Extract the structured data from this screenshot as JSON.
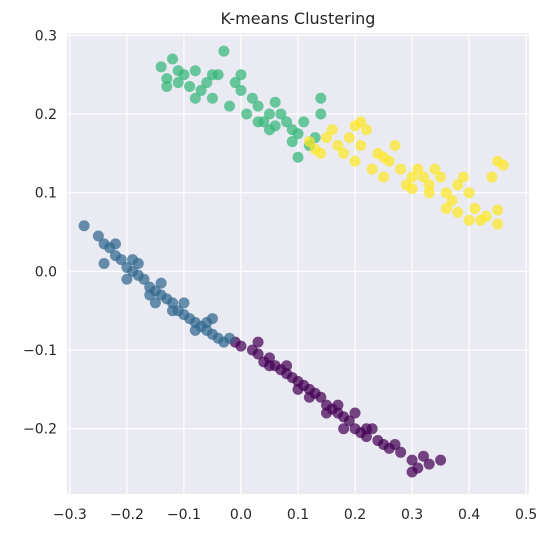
{
  "chart_data": {
    "type": "scatter",
    "title": "K-means Clustering",
    "xlabel": "",
    "ylabel": "",
    "xlim": [
      -0.305,
      0.505
    ],
    "ylim": [
      -0.283,
      0.303
    ],
    "xticks": [
      -0.3,
      -0.2,
      -0.1,
      0.0,
      0.1,
      0.2,
      0.3,
      0.4,
      0.5
    ],
    "xtick_labels": [
      "−0.3",
      "−0.2",
      "−0.1",
      "0.0",
      "0.1",
      "0.2",
      "0.3",
      "0.4",
      "0.5"
    ],
    "yticks": [
      -0.2,
      -0.1,
      0.0,
      0.1,
      0.2,
      0.3
    ],
    "ytick_labels": [
      "−0.2",
      "−0.1",
      "0.0",
      "0.1",
      "0.2",
      "0.3"
    ],
    "grid": true,
    "legend": "none",
    "background": "#eaeaf2",
    "grid_color": "#ffffff",
    "series": [
      {
        "color": "#440154",
        "points": [
          [
            -0.01,
            -0.09
          ],
          [
            0.0,
            -0.095
          ],
          [
            0.02,
            -0.1
          ],
          [
            0.03,
            -0.105
          ],
          [
            0.05,
            -0.11
          ],
          [
            0.06,
            -0.12
          ],
          [
            0.07,
            -0.125
          ],
          [
            0.08,
            -0.13
          ],
          [
            0.09,
            -0.135
          ],
          [
            0.1,
            -0.14
          ],
          [
            0.11,
            -0.145
          ],
          [
            0.12,
            -0.15
          ],
          [
            0.13,
            -0.155
          ],
          [
            0.14,
            -0.16
          ],
          [
            0.15,
            -0.17
          ],
          [
            0.16,
            -0.175
          ],
          [
            0.17,
            -0.18
          ],
          [
            0.18,
            -0.185
          ],
          [
            0.19,
            -0.19
          ],
          [
            0.2,
            -0.2
          ],
          [
            0.21,
            -0.205
          ],
          [
            0.22,
            -0.21
          ],
          [
            0.24,
            -0.215
          ],
          [
            0.26,
            -0.225
          ],
          [
            0.28,
            -0.23
          ],
          [
            0.3,
            -0.24
          ],
          [
            0.31,
            -0.25
          ],
          [
            0.32,
            -0.235
          ],
          [
            0.35,
            -0.24
          ],
          [
            0.3,
            -0.255
          ],
          [
            0.25,
            -0.22
          ],
          [
            0.22,
            -0.2
          ],
          [
            0.18,
            -0.2
          ],
          [
            0.15,
            -0.18
          ],
          [
            0.1,
            -0.15
          ],
          [
            0.05,
            -0.12
          ],
          [
            0.03,
            -0.09
          ],
          [
            0.08,
            -0.12
          ],
          [
            0.12,
            -0.16
          ],
          [
            0.17,
            -0.17
          ],
          [
            0.2,
            -0.18
          ],
          [
            0.23,
            -0.2
          ],
          [
            0.27,
            -0.22
          ],
          [
            0.33,
            -0.245
          ],
          [
            0.04,
            -0.115
          ]
        ]
      },
      {
        "color": "#31688e",
        "points": [
          [
            -0.275,
            0.058
          ],
          [
            -0.25,
            0.045
          ],
          [
            -0.24,
            0.035
          ],
          [
            -0.23,
            0.03
          ],
          [
            -0.22,
            0.02
          ],
          [
            -0.21,
            0.015
          ],
          [
            -0.2,
            0.005
          ],
          [
            -0.19,
            0.0
          ],
          [
            -0.18,
            -0.005
          ],
          [
            -0.17,
            -0.01
          ],
          [
            -0.16,
            -0.02
          ],
          [
            -0.15,
            -0.025
          ],
          [
            -0.14,
            -0.03
          ],
          [
            -0.13,
            -0.035
          ],
          [
            -0.12,
            -0.04
          ],
          [
            -0.11,
            -0.05
          ],
          [
            -0.1,
            -0.055
          ],
          [
            -0.09,
            -0.06
          ],
          [
            -0.08,
            -0.065
          ],
          [
            -0.07,
            -0.07
          ],
          [
            -0.06,
            -0.075
          ],
          [
            -0.05,
            -0.08
          ],
          [
            -0.04,
            -0.085
          ],
          [
            -0.03,
            -0.09
          ],
          [
            -0.02,
            -0.085
          ],
          [
            -0.24,
            0.01
          ],
          [
            -0.2,
            -0.01
          ],
          [
            -0.16,
            -0.03
          ],
          [
            -0.12,
            -0.05
          ],
          [
            -0.08,
            -0.075
          ],
          [
            -0.05,
            -0.06
          ],
          [
            -0.22,
            0.035
          ],
          [
            -0.18,
            0.01
          ],
          [
            -0.14,
            -0.015
          ],
          [
            -0.1,
            -0.04
          ],
          [
            -0.06,
            -0.065
          ],
          [
            -0.15,
            -0.04
          ],
          [
            -0.19,
            0.015
          ]
        ]
      },
      {
        "color": "#35b779",
        "points": [
          [
            -0.14,
            0.26
          ],
          [
            -0.13,
            0.245
          ],
          [
            -0.12,
            0.27
          ],
          [
            -0.11,
            0.24
          ],
          [
            -0.1,
            0.25
          ],
          [
            -0.09,
            0.235
          ],
          [
            -0.08,
            0.255
          ],
          [
            -0.07,
            0.23
          ],
          [
            -0.06,
            0.24
          ],
          [
            -0.05,
            0.22
          ],
          [
            -0.04,
            0.25
          ],
          [
            -0.03,
            0.28
          ],
          [
            -0.02,
            0.21
          ],
          [
            -0.01,
            0.24
          ],
          [
            0.0,
            0.23
          ],
          [
            0.01,
            0.2
          ],
          [
            0.02,
            0.22
          ],
          [
            0.03,
            0.21
          ],
          [
            0.04,
            0.19
          ],
          [
            0.05,
            0.2
          ],
          [
            0.06,
            0.185
          ],
          [
            0.07,
            0.2
          ],
          [
            0.08,
            0.19
          ],
          [
            0.09,
            0.18
          ],
          [
            0.1,
            0.175
          ],
          [
            0.11,
            0.19
          ],
          [
            0.12,
            0.16
          ],
          [
            0.13,
            0.17
          ],
          [
            0.14,
            0.2
          ],
          [
            0.14,
            0.22
          ],
          [
            -0.13,
            0.235
          ],
          [
            -0.05,
            0.25
          ],
          [
            0.0,
            0.25
          ],
          [
            0.05,
            0.18
          ],
          [
            0.09,
            0.165
          ],
          [
            0.1,
            0.145
          ],
          [
            -0.08,
            0.22
          ],
          [
            0.03,
            0.19
          ],
          [
            -0.11,
            0.255
          ],
          [
            0.06,
            0.215
          ]
        ]
      },
      {
        "color": "#fde725",
        "points": [
          [
            0.12,
            0.165
          ],
          [
            0.13,
            0.155
          ],
          [
            0.14,
            0.15
          ],
          [
            0.15,
            0.17
          ],
          [
            0.16,
            0.18
          ],
          [
            0.17,
            0.16
          ],
          [
            0.18,
            0.15
          ],
          [
            0.19,
            0.17
          ],
          [
            0.2,
            0.14
          ],
          [
            0.21,
            0.16
          ],
          [
            0.22,
            0.18
          ],
          [
            0.23,
            0.13
          ],
          [
            0.24,
            0.15
          ],
          [
            0.25,
            0.12
          ],
          [
            0.26,
            0.14
          ],
          [
            0.27,
            0.16
          ],
          [
            0.28,
            0.13
          ],
          [
            0.29,
            0.11
          ],
          [
            0.3,
            0.12
          ],
          [
            0.31,
            0.13
          ],
          [
            0.32,
            0.12
          ],
          [
            0.33,
            0.11
          ],
          [
            0.34,
            0.13
          ],
          [
            0.35,
            0.12
          ],
          [
            0.36,
            0.1
          ],
          [
            0.37,
            0.09
          ],
          [
            0.38,
            0.11
          ],
          [
            0.39,
            0.12
          ],
          [
            0.4,
            0.1
          ],
          [
            0.41,
            0.08
          ],
          [
            0.42,
            0.065
          ],
          [
            0.44,
            0.12
          ],
          [
            0.45,
            0.14
          ],
          [
            0.46,
            0.135
          ],
          [
            0.45,
            0.078
          ],
          [
            0.45,
            0.06
          ],
          [
            0.4,
            0.065
          ],
          [
            0.38,
            0.075
          ],
          [
            0.36,
            0.08
          ],
          [
            0.21,
            0.19
          ],
          [
            0.2,
            0.185
          ],
          [
            0.25,
            0.145
          ],
          [
            0.3,
            0.105
          ],
          [
            0.33,
            0.1
          ],
          [
            0.43,
            0.07
          ]
        ]
      }
    ]
  }
}
